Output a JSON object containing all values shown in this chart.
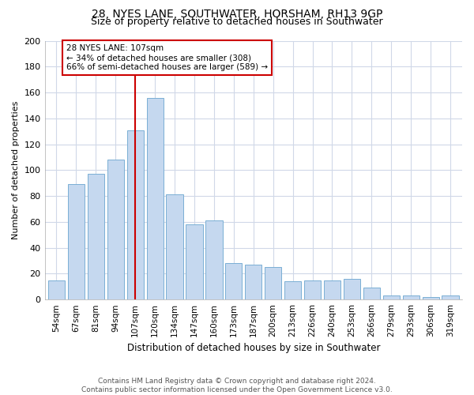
{
  "title1": "28, NYES LANE, SOUTHWATER, HORSHAM, RH13 9GP",
  "title2": "Size of property relative to detached houses in Southwater",
  "xlabel": "Distribution of detached houses by size in Southwater",
  "ylabel": "Number of detached properties",
  "categories": [
    "54sqm",
    "67sqm",
    "81sqm",
    "94sqm",
    "107sqm",
    "120sqm",
    "134sqm",
    "147sqm",
    "160sqm",
    "173sqm",
    "187sqm",
    "200sqm",
    "213sqm",
    "226sqm",
    "240sqm",
    "253sqm",
    "266sqm",
    "279sqm",
    "293sqm",
    "306sqm",
    "319sqm"
  ],
  "values": [
    15,
    89,
    97,
    108,
    131,
    156,
    81,
    58,
    61,
    28,
    27,
    25,
    14,
    15,
    15,
    16,
    9,
    3,
    3,
    2,
    3
  ],
  "bar_color": "#c5d8ef",
  "bar_edge_color": "#7aafd4",
  "vline_x_index": 4,
  "vline_color": "#cc0000",
  "annotation_text": "28 NYES LANE: 107sqm\n← 34% of detached houses are smaller (308)\n66% of semi-detached houses are larger (589) →",
  "annotation_box_color": "white",
  "annotation_box_edge_color": "#cc0000",
  "ylim": [
    0,
    200
  ],
  "yticks": [
    0,
    20,
    40,
    60,
    80,
    100,
    120,
    140,
    160,
    180,
    200
  ],
  "footer": "Contains HM Land Registry data © Crown copyright and database right 2024.\nContains public sector information licensed under the Open Government Licence v3.0.",
  "bg_color": "#ffffff",
  "grid_color": "#d0d8e8",
  "title1_fontsize": 10,
  "title2_fontsize": 9,
  "ylabel_fontsize": 8,
  "xlabel_fontsize": 8.5,
  "tick_fontsize": 7.5,
  "footer_fontsize": 6.5
}
